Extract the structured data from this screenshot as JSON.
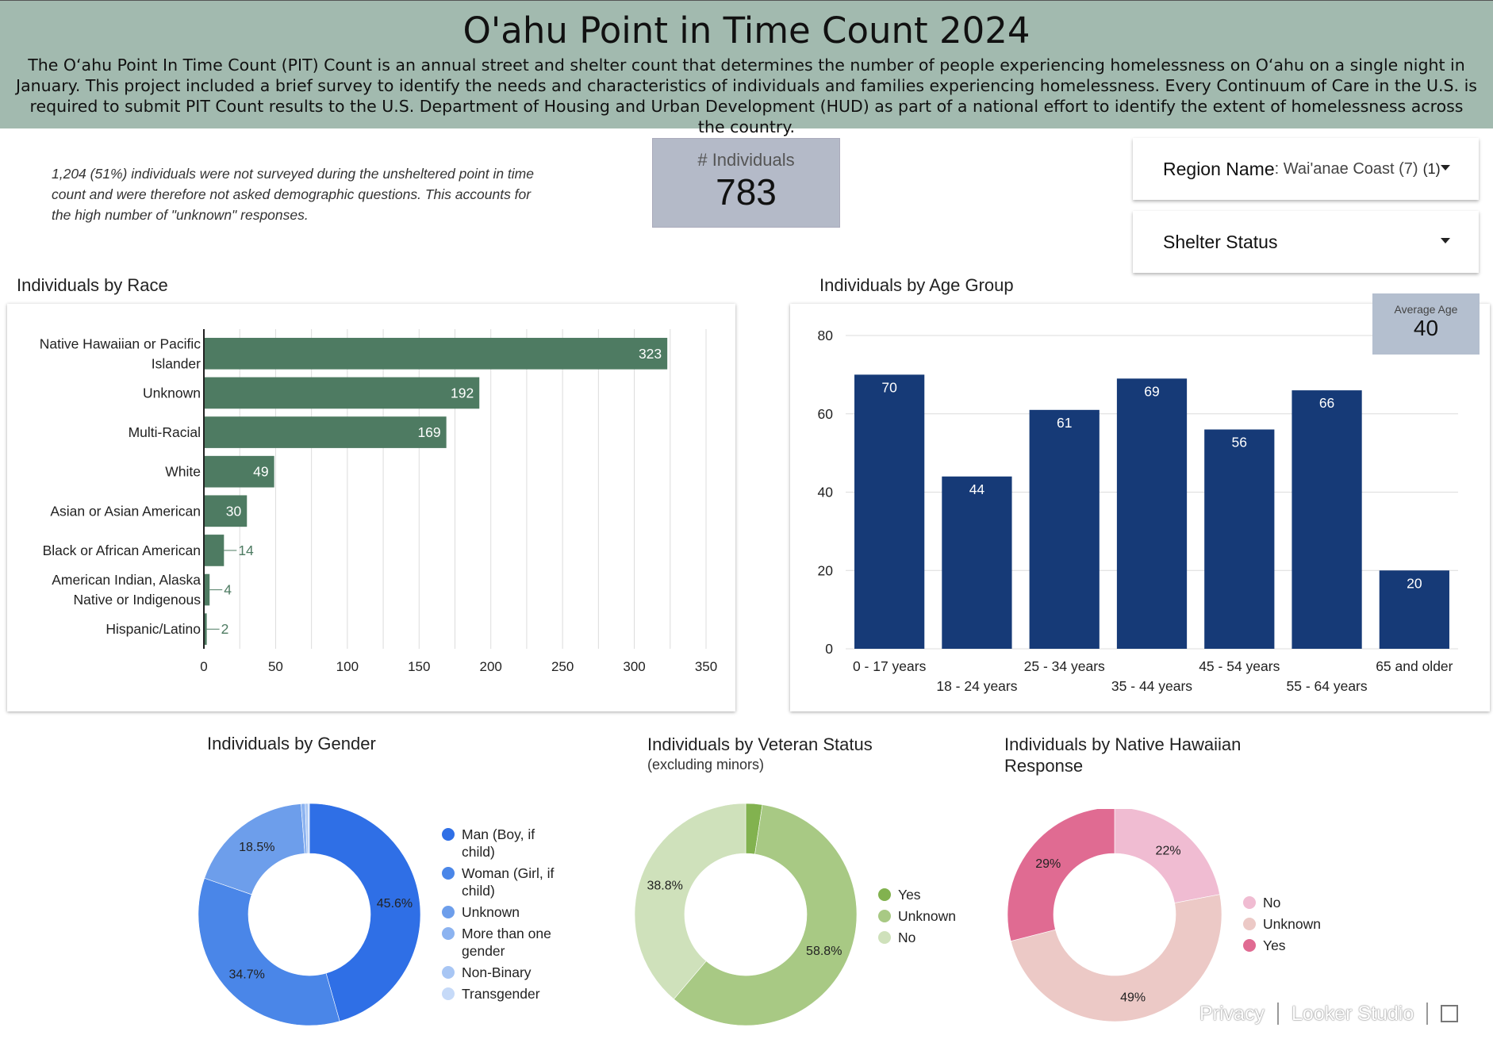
{
  "header": {
    "title": "O'ahu Point in Time Count 2024",
    "description": "The O‘ahu Point In Time Count (PIT) Count is an annual street and shelter count that determines the number of people experiencing homelessness on O‘ahu on a single night in January. This project included a brief survey to identify the needs and characteristics of individuals and families experiencing homelessness. Every Continuum of Care in the U.S. is required to submit PIT Count results to the U.S. Department of Housing and Urban Development (HUD) as part of a national effort to identify the extent of homelessness across the country."
  },
  "note": "1,204 (51%) individuals were not surveyed during the unsheltered point in time count and were therefore not asked demographic questions. This accounts for the high number of \"unknown\" responses.",
  "kpi": {
    "label": "# Individuals",
    "value": "783"
  },
  "filters": {
    "region": {
      "name": "Region Name",
      "value": ": Wai'anae Coast (7)",
      "count": "(1)"
    },
    "shelter": {
      "name": "Shelter Status"
    }
  },
  "average_age": {
    "label": "Average Age",
    "value": "40"
  },
  "colors": {
    "race_bar": "#4e7b62",
    "age_bar": "#163a77",
    "header_bg": "#a2baaf"
  },
  "footer": {
    "privacy": "Privacy",
    "brand": "Looker Studio",
    "fullscreen_icon": "fullscreen-icon"
  },
  "chart_data": [
    {
      "type": "bar",
      "title": "Individuals by Race",
      "orientation": "horizontal",
      "categories": [
        "Native Hawaiian or Pacific Islander",
        "Unknown",
        "Multi-Racial",
        "White",
        "Asian or Asian American",
        "Black or African American",
        "American Indian, Alaska Native or Indigenous",
        "Hispanic/Latino"
      ],
      "category_lines": [
        [
          "Native Hawaiian or Pacific",
          "Islander"
        ],
        [
          "Unknown"
        ],
        [
          "Multi-Racial"
        ],
        [
          "White"
        ],
        [
          "Asian or Asian American"
        ],
        [
          "Black or African American"
        ],
        [
          "American Indian, Alaska",
          "Native or Indigenous"
        ],
        [
          "Hispanic/Latino"
        ]
      ],
      "values": [
        323,
        192,
        169,
        49,
        30,
        14,
        4,
        2
      ],
      "xlim": [
        0,
        350
      ],
      "xticks": [
        0,
        50,
        100,
        150,
        200,
        250,
        300,
        350
      ],
      "grid": true
    },
    {
      "type": "bar",
      "title": "Individuals by Age Group",
      "categories": [
        "0 - 17 years",
        "18 - 24 years",
        "25 - 34 years",
        "35 - 44 years",
        "45 - 54 years",
        "55 - 64 years",
        "65 and older"
      ],
      "values": [
        70,
        44,
        61,
        69,
        56,
        66,
        20
      ],
      "ylim": [
        0,
        80
      ],
      "yticks": [
        0,
        20,
        40,
        60,
        80
      ],
      "grid": true
    },
    {
      "type": "pie",
      "donut": true,
      "title": "Individuals by Gender",
      "labels": [
        "Man (Boy, if child)",
        "Woman (Girl, if child)",
        "Unknown",
        "More than one gender",
        "Non-Binary",
        "Transgender"
      ],
      "legend_lines": [
        [
          "Man (Boy, if",
          "child)"
        ],
        [
          "Woman (Girl, if",
          "child)"
        ],
        [
          "Unknown"
        ],
        [
          "More than one",
          "gender"
        ],
        [
          "Non-Binary"
        ],
        [
          "Transgender"
        ]
      ],
      "values": [
        45.6,
        34.7,
        18.5,
        0.6,
        0.4,
        0.2
      ],
      "value_labels": [
        "45.6%",
        "34.7%",
        "18.5%",
        "",
        "",
        ""
      ],
      "colors": [
        "#2f6fe6",
        "#4a86e8",
        "#6d9eeb",
        "#8cb3f0",
        "#a8c6f4",
        "#c6daf8"
      ],
      "legend_position": "right"
    },
    {
      "type": "pie",
      "donut": true,
      "title": "Individuals by Veteran Status",
      "subtitle": "(excluding minors)",
      "labels": [
        "Yes",
        "Unknown",
        "No"
      ],
      "values": [
        2.4,
        58.8,
        38.8
      ],
      "value_labels": [
        "",
        "58.8%",
        "38.8%"
      ],
      "colors": [
        "#82b24f",
        "#a8c984",
        "#cfe1bb"
      ],
      "legend_position": "right"
    },
    {
      "type": "pie",
      "donut": true,
      "title": "Individuals by Native Hawaiian Response",
      "title_lines": [
        "Individuals by Native Hawaiian",
        "Response"
      ],
      "labels": [
        "No",
        "Unknown",
        "Yes"
      ],
      "values": [
        22,
        49,
        29
      ],
      "value_labels": [
        "22%",
        "49%",
        "29%"
      ],
      "colors": [
        "#f0bcd2",
        "#ecc9c6",
        "#e06b92"
      ],
      "legend_position": "right"
    }
  ]
}
